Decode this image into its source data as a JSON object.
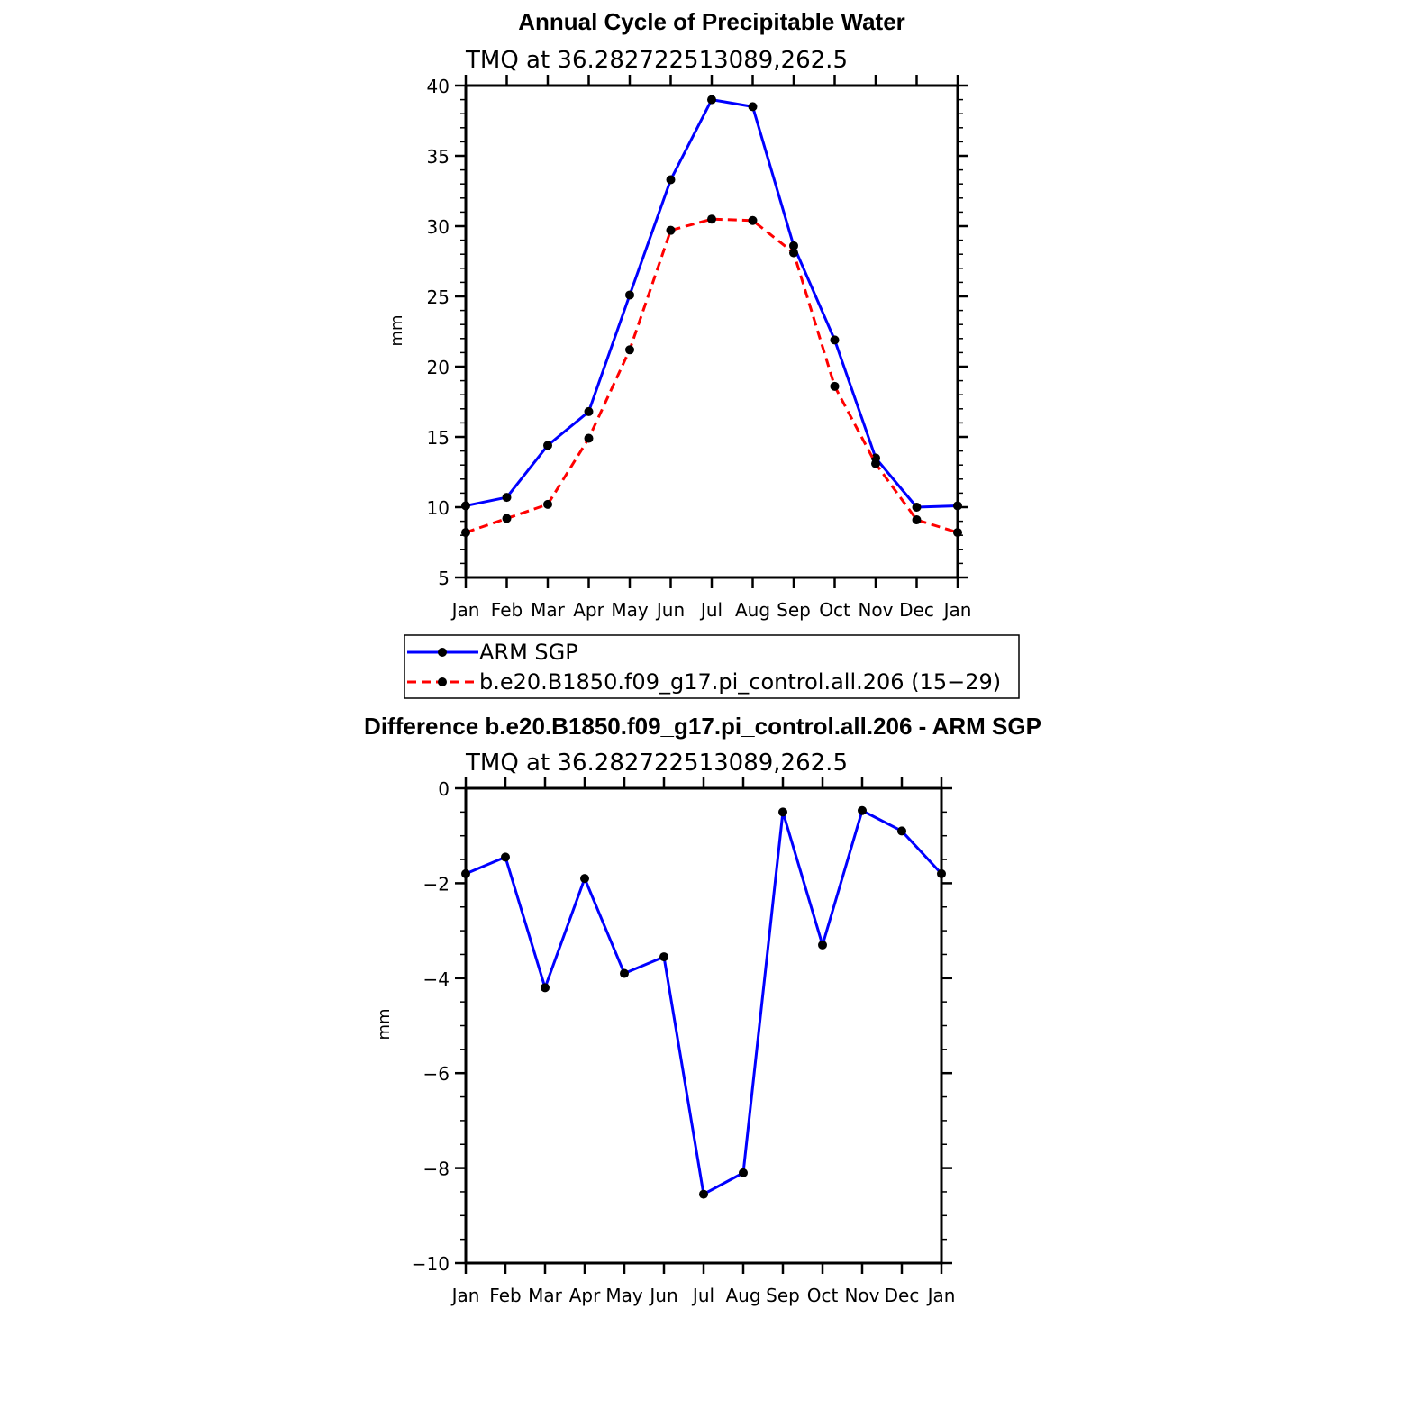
{
  "chart_data": [
    {
      "type": "line",
      "title": "Annual Cycle of Precipitable Water",
      "subtitle": "TMQ at 36.282722513089,262.5",
      "ylabel": "mm",
      "xlabel": "",
      "categories": [
        "Jan",
        "Feb",
        "Mar",
        "Apr",
        "May",
        "Jun",
        "Jul",
        "Aug",
        "Sep",
        "Oct",
        "Nov",
        "Dec",
        "Jan"
      ],
      "ylim": [
        5,
        40
      ],
      "yticks": [
        "5",
        "10",
        "15",
        "20",
        "25",
        "30",
        "35",
        "40"
      ],
      "series": [
        {
          "name": "ARM SGP",
          "color": "#0000ff",
          "dash": "solid",
          "values": [
            10.1,
            10.7,
            14.4,
            16.8,
            25.1,
            33.3,
            39.0,
            38.5,
            28.6,
            21.9,
            13.5,
            10.0,
            10.1
          ]
        },
        {
          "name": "b.e20.B1850.f09_g17.pi_control.all.206 (15−29)",
          "color": "#ff0000",
          "dash": "dashed",
          "values": [
            8.2,
            9.2,
            10.2,
            14.9,
            21.2,
            29.7,
            30.5,
            30.4,
            28.1,
            18.6,
            13.1,
            9.1,
            8.2
          ]
        }
      ],
      "legend": "bottom"
    },
    {
      "type": "line",
      "title": "Difference b.e20.B1850.f09_g17.pi_control.all.206 - ARM SGP",
      "subtitle": "TMQ at 36.282722513089,262.5",
      "ylabel": "mm",
      "xlabel": "",
      "categories": [
        "Jan",
        "Feb",
        "Mar",
        "Apr",
        "May",
        "Jun",
        "Jul",
        "Aug",
        "Sep",
        "Oct",
        "Nov",
        "Dec",
        "Jan"
      ],
      "ylim": [
        -10,
        0
      ],
      "yticks": [
        "−10",
        "−8",
        "−6",
        "−4",
        "−2",
        "0"
      ],
      "series": [
        {
          "name": "Difference",
          "color": "#0000ff",
          "dash": "solid",
          "values": [
            -1.8,
            -1.45,
            -4.2,
            -1.9,
            -3.9,
            -3.55,
            -8.55,
            -8.1,
            -0.5,
            -3.3,
            -0.47,
            -0.9,
            -1.8
          ]
        }
      ]
    }
  ]
}
